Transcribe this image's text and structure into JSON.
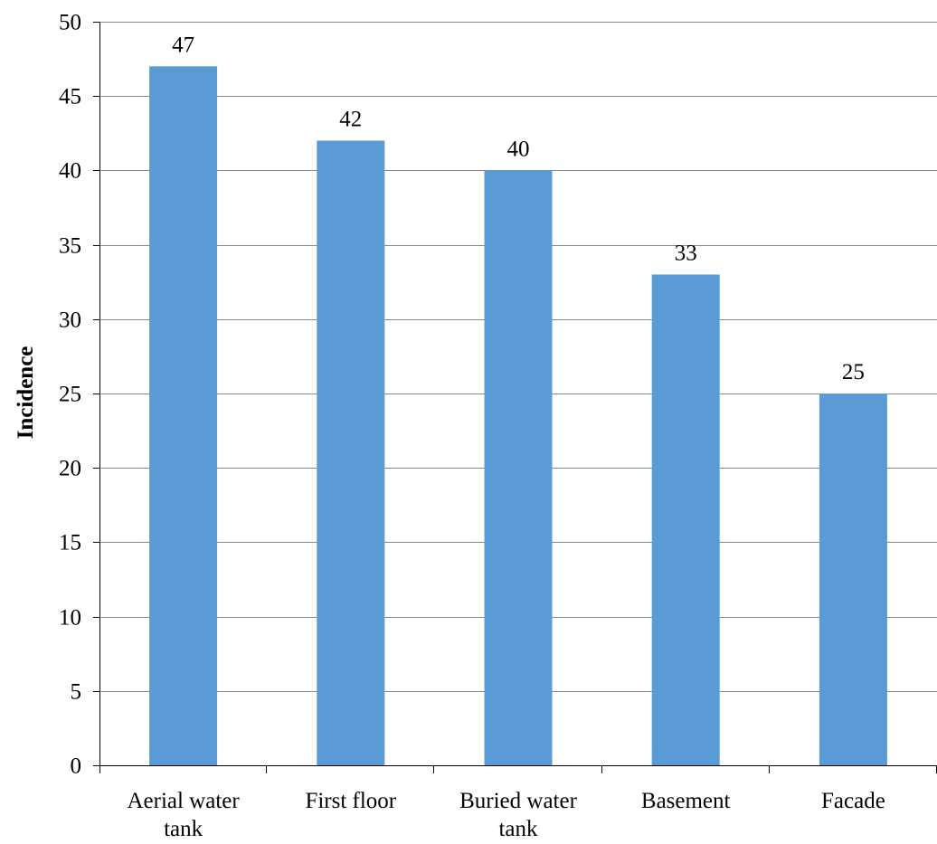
{
  "chart_data": {
    "type": "bar",
    "title": "",
    "xlabel": "",
    "ylabel": "Incidence",
    "ylim": [
      0,
      50
    ],
    "ytick_step": 5,
    "grid": true,
    "legend": "none",
    "categories": [
      [
        "Aerial water",
        "tank"
      ],
      [
        "First floor"
      ],
      [
        "Buried water",
        "tank"
      ],
      [
        "Basement"
      ],
      [
        "Facade"
      ]
    ],
    "values": [
      47,
      42,
      40,
      33,
      25
    ],
    "data_labels": [
      "47",
      "42",
      "40",
      "33",
      "25"
    ],
    "colors": {
      "bar": "#5b9bd5",
      "grid": "#868686",
      "axis": "#000000"
    }
  }
}
